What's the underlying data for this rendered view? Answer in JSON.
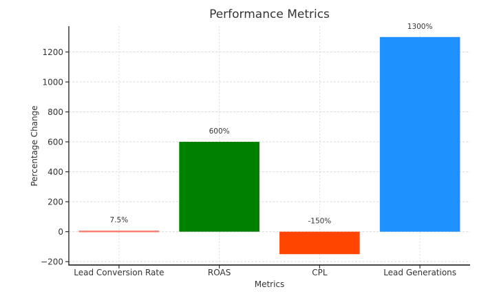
{
  "chart_data": {
    "type": "bar",
    "title": "Performance Metrics",
    "xlabel": "Metrics",
    "ylabel": "Percentage Change",
    "categories": [
      "Lead Conversion Rate",
      "ROAS",
      "CPL",
      "Lead Generations"
    ],
    "values": [
      7.5,
      600,
      -150,
      1300
    ],
    "bar_labels": [
      "7.5%",
      "600%",
      "-150%",
      "1300%"
    ],
    "bar_colors": [
      "#FA8072",
      "#008000",
      "#FF4500",
      "#1E90FF"
    ],
    "yticks": [
      -200,
      0,
      200,
      400,
      600,
      800,
      1000,
      1200
    ],
    "ylim": [
      -222.5,
      1372.5
    ],
    "grid": true,
    "legend": "none",
    "grid_color": "#d9d9d9",
    "axis_color": "#2b2b2b",
    "text_color": "#333333",
    "background": "#ffffff"
  }
}
